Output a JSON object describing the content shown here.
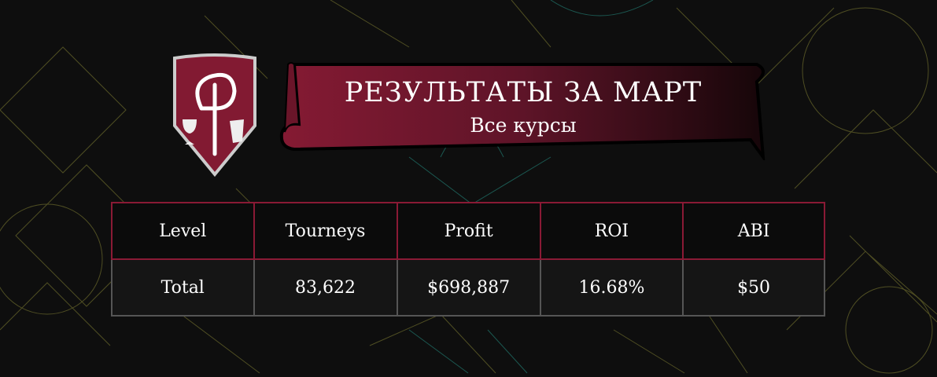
{
  "header": {
    "title": "РЕЗУЛЬТАТЫ ЗА МАРТ",
    "subtitle": "Все курсы"
  },
  "colors": {
    "accent": "#8a1a35",
    "background": "#0e0e0e"
  },
  "icons": {
    "logo": "shield-logo-phi-chalice-scroll"
  },
  "table": {
    "columns": [
      "Level",
      "Tourneys",
      "Profit",
      "ROI",
      "ABI"
    ],
    "rows": [
      [
        "Total",
        "83,622",
        "$698,887",
        "16.68%",
        "$50"
      ]
    ]
  }
}
